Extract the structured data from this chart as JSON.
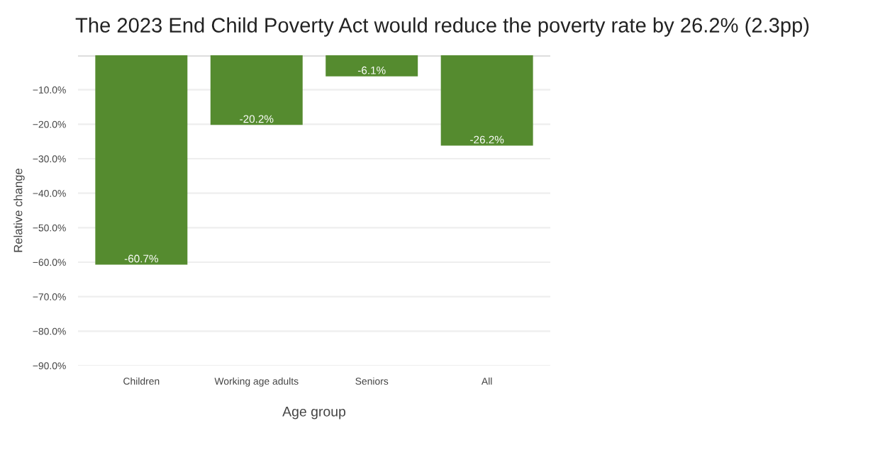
{
  "chart_data": {
    "type": "bar",
    "title": "The 2023 End Child Poverty Act would reduce the poverty rate by 26.2% (2.3pp)",
    "xlabel": "Age group",
    "ylabel": "Relative change",
    "categories": [
      "Children",
      "Working age adults",
      "Seniors",
      "All"
    ],
    "values": [
      -60.7,
      -20.2,
      -6.1,
      -26.2
    ],
    "value_labels": [
      "-60.7%",
      "-20.2%",
      "-6.1%",
      "-26.2%"
    ],
    "color": "#558b2f",
    "ylim": [
      -90,
      0
    ],
    "yticks": [
      {
        "value": -10,
        "label": "−10.0%"
      },
      {
        "value": -20,
        "label": "−20.0%"
      },
      {
        "value": -30,
        "label": "−30.0%"
      },
      {
        "value": -40,
        "label": "−40.0%"
      },
      {
        "value": -50,
        "label": "−50.0%"
      },
      {
        "value": -60,
        "label": "−60.0%"
      },
      {
        "value": -70,
        "label": "−70.0%"
      },
      {
        "value": -80,
        "label": "−80.0%"
      },
      {
        "value": -90,
        "label": "−90.0%"
      }
    ],
    "grid": "y"
  }
}
